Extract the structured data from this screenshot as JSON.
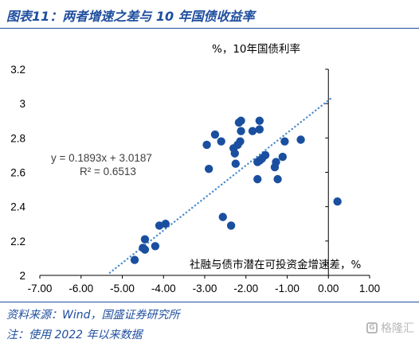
{
  "figure": {
    "title": "图表11：两者增速之差与 10 年国债收益率",
    "source": "资料来源：Wind，国盛证券研究所",
    "footnote": "注：使用 2022 年以来数据",
    "watermark": "格隆汇"
  },
  "chart_data": {
    "type": "scatter",
    "ylabel": "%，10年国债利率",
    "xlabel": "社融与债市潜在可投资金增速差，%",
    "xlim": [
      -7,
      1
    ],
    "ylim": [
      2,
      3.2
    ],
    "xticks": [
      "-7.00",
      "-6.00",
      "-5.00",
      "-4.00",
      "-3.00",
      "-2.00",
      "-1.00",
      "0.00",
      "1.00"
    ],
    "yticks": [
      "2",
      "2.2",
      "2.4",
      "2.6",
      "2.8",
      "3",
      "3.2"
    ],
    "grid": false,
    "color": "#1a4fa0",
    "trendline": {
      "equation": "y = 0.1893x + 3.0187",
      "r2": "R² = 0.6513",
      "slope": 0.1893,
      "intercept": 3.0187,
      "x_range": [
        -5.3,
        0.1
      ],
      "style": "dotted",
      "color": "#4a8ccc"
    },
    "points": [
      {
        "x": 0.22,
        "y": 2.43
      },
      {
        "x": -0.67,
        "y": 2.79
      },
      {
        "x": -1.06,
        "y": 2.78
      },
      {
        "x": -1.11,
        "y": 2.69
      },
      {
        "x": -1.27,
        "y": 2.66
      },
      {
        "x": -1.3,
        "y": 2.63
      },
      {
        "x": -1.23,
        "y": 2.56
      },
      {
        "x": -1.53,
        "y": 2.7
      },
      {
        "x": -1.61,
        "y": 2.68
      },
      {
        "x": -1.66,
        "y": 2.67
      },
      {
        "x": -1.72,
        "y": 2.66
      },
      {
        "x": -1.72,
        "y": 2.56
      },
      {
        "x": -1.67,
        "y": 2.85
      },
      {
        "x": -1.67,
        "y": 2.9
      },
      {
        "x": -1.84,
        "y": 2.84
      },
      {
        "x": -2.12,
        "y": 2.9
      },
      {
        "x": -2.17,
        "y": 2.89
      },
      {
        "x": -2.12,
        "y": 2.84
      },
      {
        "x": -2.14,
        "y": 2.78
      },
      {
        "x": -2.2,
        "y": 2.76
      },
      {
        "x": -2.3,
        "y": 2.74
      },
      {
        "x": -2.27,
        "y": 2.71
      },
      {
        "x": -2.25,
        "y": 2.65
      },
      {
        "x": -2.6,
        "y": 2.78
      },
      {
        "x": -2.75,
        "y": 2.82
      },
      {
        "x": -2.95,
        "y": 2.76
      },
      {
        "x": -2.9,
        "y": 2.62
      },
      {
        "x": -2.56,
        "y": 2.34
      },
      {
        "x": -2.36,
        "y": 2.29
      },
      {
        "x": -3.95,
        "y": 2.3
      },
      {
        "x": -4.1,
        "y": 2.29
      },
      {
        "x": -4.2,
        "y": 2.17
      },
      {
        "x": -4.45,
        "y": 2.21
      },
      {
        "x": -4.5,
        "y": 2.16
      },
      {
        "x": -4.45,
        "y": 2.15
      },
      {
        "x": -4.7,
        "y": 2.09
      }
    ]
  }
}
